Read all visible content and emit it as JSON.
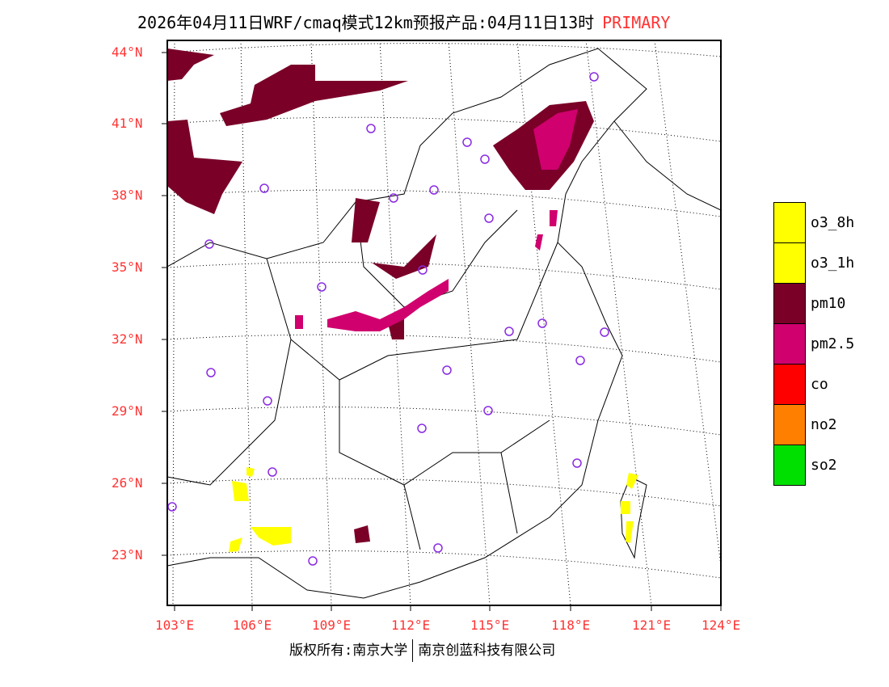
{
  "title": {
    "text": "2026年04月11日WRF/cmaq模式12km预报产品:04月11日13时",
    "pollutant": "PRIMARY"
  },
  "axes": {
    "lat_labels": [
      "44°N",
      "41°N",
      "38°N",
      "35°N",
      "32°N",
      "29°N",
      "26°N",
      "23°N"
    ],
    "lon_labels": [
      "103°E",
      "106°E",
      "109°E",
      "112°E",
      "115°E",
      "118°E",
      "121°E",
      "124°E"
    ]
  },
  "legend": [
    {
      "label": "o3_8h",
      "color": "#ffff00"
    },
    {
      "label": "o3_1h",
      "color": "#ffff00"
    },
    {
      "label": "pm10",
      "color": "#7a0028"
    },
    {
      "label": "pm2.5",
      "color": "#d0006e"
    },
    {
      "label": "co",
      "color": "#ff0000"
    },
    {
      "label": "no2",
      "color": "#ff8000"
    },
    {
      "label": "so2",
      "color": "#00e000"
    }
  ],
  "footer": {
    "left": "版权所有:南京大学",
    "right": "南京创蓝科技有限公司"
  },
  "colors": {
    "station": "#8a2be2",
    "axis_label": "#ff3333"
  }
}
